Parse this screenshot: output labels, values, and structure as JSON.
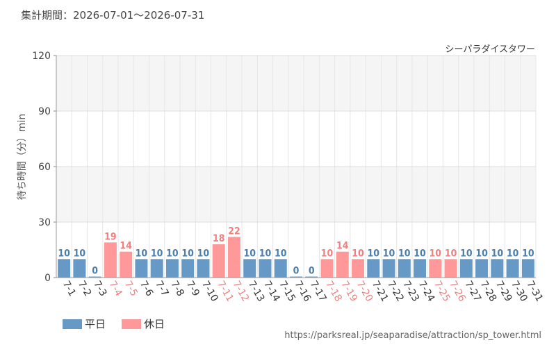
{
  "header": {
    "period_text": "集計期間：2026-07-01～2026-07-31"
  },
  "footer": {
    "source_url": "https://parksreal.jp/seaparadise/attraction/sp_tower.html"
  },
  "colors": {
    "weekday": "#6699c6",
    "holiday": "#ff9999",
    "weekday_label": "#4d7eaa",
    "holiday_label": "#f08080"
  },
  "chart_data": {
    "type": "bar",
    "title": "シーパラダイスタワー",
    "ylabel": "待ち時間（分）min",
    "xlabel": "",
    "ylim": [
      0,
      120
    ],
    "yticks": [
      0,
      30,
      60,
      90,
      120
    ],
    "grid": true,
    "legend_position": "bottom-left",
    "categories": [
      "7-1",
      "7-2",
      "7-3",
      "7-4",
      "7-5",
      "7-6",
      "7-7",
      "7-8",
      "7-9",
      "7-10",
      "7-11",
      "7-12",
      "7-13",
      "7-14",
      "7-15",
      "7-16",
      "7-17",
      "7-18",
      "7-19",
      "7-20",
      "7-21",
      "7-22",
      "7-23",
      "7-24",
      "7-25",
      "7-26",
      "7-27",
      "7-28",
      "7-29",
      "7-30",
      "7-31"
    ],
    "values": [
      10,
      10,
      0,
      19,
      14,
      10,
      10,
      10,
      10,
      10,
      18,
      22,
      10,
      10,
      10,
      0,
      0,
      10,
      14,
      10,
      10,
      10,
      10,
      10,
      10,
      10,
      10,
      10,
      10,
      10,
      10
    ],
    "day_type": [
      "weekday",
      "weekday",
      "weekday",
      "holiday",
      "holiday",
      "weekday",
      "weekday",
      "weekday",
      "weekday",
      "weekday",
      "holiday",
      "holiday",
      "weekday",
      "weekday",
      "weekday",
      "weekday",
      "weekday",
      "holiday",
      "holiday",
      "holiday",
      "weekday",
      "weekday",
      "weekday",
      "weekday",
      "holiday",
      "holiday",
      "weekday",
      "weekday",
      "weekday",
      "weekday",
      "weekday"
    ],
    "legend": [
      {
        "key": "weekday",
        "label": "平日"
      },
      {
        "key": "holiday",
        "label": "休日"
      }
    ]
  }
}
